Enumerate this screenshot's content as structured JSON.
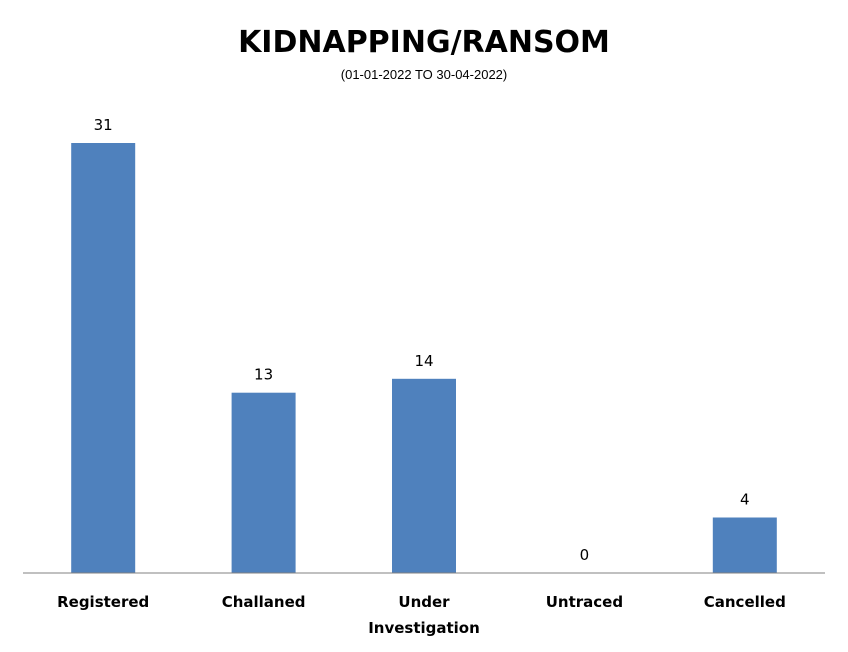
{
  "chart_data": {
    "type": "bar",
    "title": "KIDNAPPING/RANSOM",
    "subtitle": "(01-01-2022 TO 30-04-2022)",
    "categories": [
      [
        "Registered"
      ],
      [
        "Challaned"
      ],
      [
        "Under",
        "Investigation"
      ],
      [
        "Untraced"
      ],
      [
        "Cancelled"
      ]
    ],
    "values": [
      31,
      13,
      14,
      0,
      4
    ],
    "data_labels": [
      "31",
      "13",
      "14",
      "0",
      "4"
    ],
    "ylim": [
      0,
      31
    ],
    "grid": false,
    "legend": "none",
    "bar_color": "#4F81BD"
  }
}
